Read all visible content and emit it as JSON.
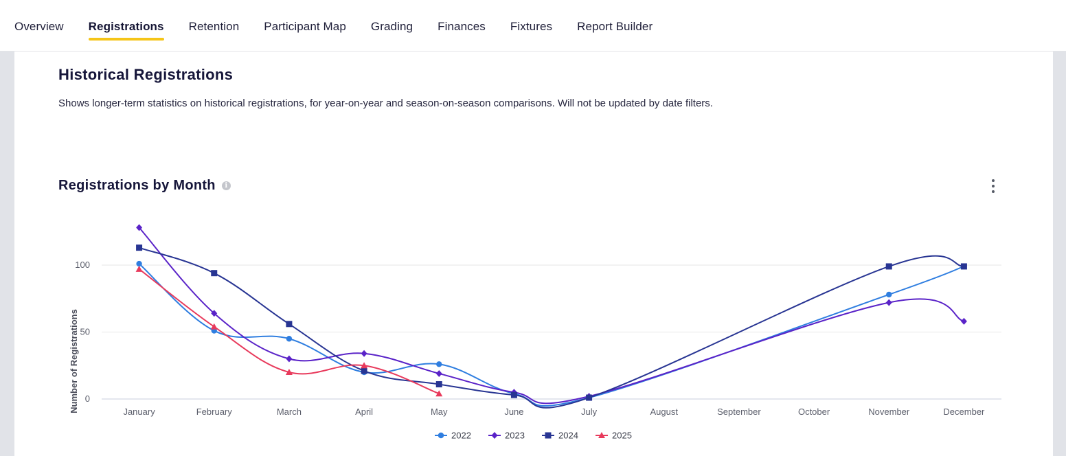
{
  "nav": {
    "tabs": [
      {
        "label": "Overview",
        "active": false
      },
      {
        "label": "Registrations",
        "active": true
      },
      {
        "label": "Retention",
        "active": false
      },
      {
        "label": "Participant Map",
        "active": false
      },
      {
        "label": "Grading",
        "active": false
      },
      {
        "label": "Finances",
        "active": false
      },
      {
        "label": "Fixtures",
        "active": false
      },
      {
        "label": "Report Builder",
        "active": false
      }
    ],
    "accent_color": "#f5c518"
  },
  "section": {
    "title": "Historical Registrations",
    "description": "Shows longer-term statistics on historical registrations, for year-on-year and season-on-season comparisons. Will not be updated by date filters."
  },
  "chart_card": {
    "title": "Registrations by Month",
    "info_icon": "info-icon",
    "menu_icon": "more-vertical-icon"
  },
  "chart_data": {
    "type": "line",
    "title": "Registrations by Month",
    "xlabel": "",
    "ylabel": "Number of Registrations",
    "categories": [
      "January",
      "February",
      "March",
      "April",
      "May",
      "June",
      "July",
      "August",
      "September",
      "October",
      "November",
      "December"
    ],
    "ylim": [
      0,
      130
    ],
    "yticks": [
      0,
      50,
      100
    ],
    "grid": true,
    "legend_position": "bottom",
    "smooth": true,
    "series": [
      {
        "name": "2022",
        "color": "#2f7ee0",
        "marker": "circle",
        "values": [
          101,
          51,
          45,
          20,
          26,
          4,
          1,
          null,
          null,
          null,
          78,
          99
        ]
      },
      {
        "name": "2023",
        "color": "#5a23c8",
        "marker": "diamond",
        "values": [
          128,
          64,
          30,
          34,
          19,
          5,
          2,
          null,
          null,
          null,
          72,
          58
        ]
      },
      {
        "name": "2024",
        "color": "#283593",
        "marker": "square",
        "values": [
          113,
          94,
          56,
          21,
          11,
          3,
          1,
          null,
          null,
          null,
          99,
          99
        ]
      },
      {
        "name": "2025",
        "color": "#e83a5c",
        "marker": "triangle",
        "values": [
          97,
          54,
          20,
          25,
          4,
          null,
          null,
          null,
          null,
          null,
          null,
          null
        ]
      }
    ]
  }
}
